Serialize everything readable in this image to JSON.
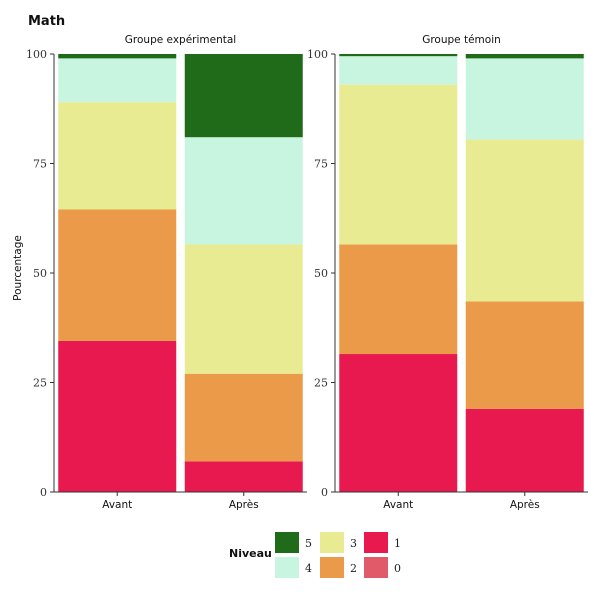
{
  "chart_data": {
    "type": "bar",
    "stacked": true,
    "title": "Math",
    "ylabel": "Pourcentage",
    "xlabel": "",
    "ylim": [
      0,
      100
    ],
    "yticks": [
      "0",
      "25",
      "50",
      "75",
      "100"
    ],
    "legend": {
      "title": "Niveau",
      "position": "bottom",
      "entries": [
        {
          "label": "5",
          "color": "#1f6b1a"
        },
        {
          "label": "4",
          "color": "#c8f5df"
        },
        {
          "label": "3",
          "color": "#e8eb92"
        },
        {
          "label": "2",
          "color": "#ea9a48"
        },
        {
          "label": "1",
          "color": "#e8194f"
        },
        {
          "label": "0",
          "color": "#e15a6a"
        }
      ]
    },
    "stack_order": [
      "0",
      "1",
      "2",
      "3",
      "4",
      "5"
    ],
    "panels": [
      {
        "title": "Groupe expérimental",
        "categories": [
          "Avant",
          "Après"
        ],
        "series": [
          {
            "name": "0",
            "values": [
              0,
              0
            ]
          },
          {
            "name": "1",
            "values": [
              34.5,
              7
            ]
          },
          {
            "name": "2",
            "values": [
              30,
              20
            ]
          },
          {
            "name": "3",
            "values": [
              24.5,
              29.5
            ]
          },
          {
            "name": "4",
            "values": [
              10,
              24.5
            ]
          },
          {
            "name": "5",
            "values": [
              1,
              19
            ]
          }
        ]
      },
      {
        "title": "Groupe témoin",
        "categories": [
          "Avant",
          "Après"
        ],
        "series": [
          {
            "name": "0",
            "values": [
              0,
              0
            ]
          },
          {
            "name": "1",
            "values": [
              31.5,
              19
            ]
          },
          {
            "name": "2",
            "values": [
              25,
              24.5
            ]
          },
          {
            "name": "3",
            "values": [
              36.5,
              37
            ]
          },
          {
            "name": "4",
            "values": [
              6.5,
              18.5
            ]
          },
          {
            "name": "5",
            "values": [
              0.5,
              1
            ]
          }
        ]
      }
    ]
  }
}
